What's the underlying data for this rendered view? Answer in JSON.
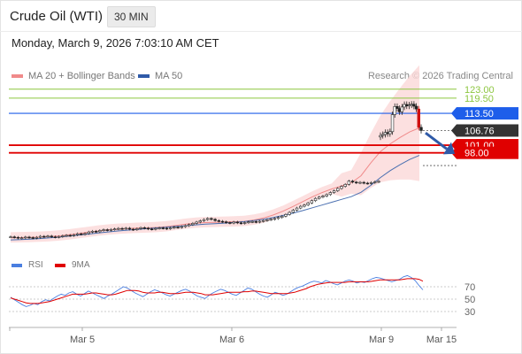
{
  "header": {
    "title": "Crude Oil (WTI)",
    "interval": "30 MIN",
    "datetime": "Monday, March 9, 2026 7:03:10 AM CET"
  },
  "legend": {
    "ma20_label": "MA 20 + Bollinger Bands",
    "ma50_label": "MA 50",
    "credit": "Research © 2026 Trading Central"
  },
  "rsi_legend": {
    "rsi_label": "RSI",
    "ma_label": "9MA"
  },
  "colors": {
    "candle": "#222222",
    "ma20": "#f08a8a",
    "band_fill": "#fbd6d6",
    "ma50": "#4a6fb0",
    "target": "#8cc63f",
    "pivot": "#1e5eea",
    "support": "#e00000",
    "current": "#333333",
    "arrow": "#2f5aa8",
    "rsi": "#4a7ee0",
    "rsi_ma": "#e00000"
  },
  "chart_data": [
    {
      "type": "candlestick",
      "x_tick_labels": [
        "Mar 5",
        "Mar 6",
        "Mar 9",
        "Mar 15"
      ],
      "y_min": 60,
      "y_max": 125,
      "horizontal_levels": [
        {
          "label": "123.00",
          "value": 123.0,
          "role": "resistance-target"
        },
        {
          "label": "119.50",
          "value": 119.5,
          "role": "resistance-target"
        },
        {
          "label": "113.50",
          "value": 113.5,
          "role": "pivot"
        },
        {
          "label": "106.76",
          "value": 106.76,
          "role": "last-price"
        },
        {
          "label": "101.00",
          "value": 101.0,
          "role": "support"
        },
        {
          "label": "98.00",
          "value": 98.0,
          "role": "support"
        }
      ],
      "close_series": [
        65.0,
        64.8,
        64.5,
        64.6,
        64.9,
        64.7,
        64.5,
        64.8,
        65.2,
        65.1,
        65.3,
        65.0,
        64.9,
        65.1,
        65.4,
        65.6,
        65.5,
        65.8,
        66.2,
        66.0,
        66.3,
        66.9,
        67.2,
        67.0,
        67.5,
        67.8,
        67.6,
        67.9,
        68.1,
        68.3,
        68.2,
        68.4,
        68.0,
        67.8,
        68.2,
        68.6,
        68.4,
        68.1,
        68.0,
        68.3,
        68.5,
        68.4,
        68.2,
        68.5,
        68.8,
        68.7,
        69.0,
        69.4,
        69.8,
        70.3,
        70.8,
        71.3,
        71.8,
        72.2,
        71.9,
        71.4,
        71.1,
        70.9,
        70.6,
        70.4,
        70.8,
        70.5,
        70.3,
        70.6,
        70.9,
        71.0,
        70.8,
        71.1,
        71.4,
        71.7,
        71.9,
        72.2,
        72.6,
        73.1,
        73.8,
        74.6,
        75.5,
        76.3,
        77.0,
        77.5,
        78.3,
        79.2,
        80.1,
        80.6,
        81.0,
        81.6,
        82.4,
        83.1,
        84.0,
        84.8,
        85.6,
        86.9,
        86.5,
        86.2,
        86.4,
        86.1,
        86.0,
        86.3,
        86.6,
        86.8
      ],
      "gap_segment_closes": [
        104.8,
        105.2,
        106.0,
        105.5,
        106.3,
        113.0,
        116.2,
        115.4,
        114.1,
        116.0,
        117.0,
        116.4,
        116.8,
        117.1,
        116.3,
        115.2,
        108.0,
        106.76
      ],
      "series": [
        {
          "name": "MA 20",
          "values": [
            64.6,
            64.7,
            64.8,
            64.9,
            65.1,
            65.4,
            65.8,
            66.3,
            66.8,
            67.3,
            67.7,
            68.0,
            68.2,
            68.4,
            68.5,
            68.7,
            69.0,
            69.5,
            70.0,
            70.4,
            70.6,
            70.7,
            70.8,
            70.9,
            71.1,
            71.6,
            72.4,
            73.6,
            75.1,
            76.9,
            78.8,
            80.7,
            82.4,
            83.8,
            85.0,
            86.2,
            89.0,
            94.0,
            98.5,
            101.5,
            104.0,
            106.2,
            107.8
          ]
        },
        {
          "name": "MA 50",
          "values": [
            63.8,
            63.9,
            64.1,
            64.3,
            64.6,
            64.9,
            65.3,
            65.7,
            66.1,
            66.5,
            66.9,
            67.3,
            67.6,
            67.9,
            68.2,
            68.5,
            68.8,
            69.1,
            69.4,
            69.7,
            70.0,
            70.2,
            70.4,
            70.7,
            71.0,
            71.4,
            71.9,
            72.6,
            73.4,
            74.3,
            75.3,
            76.4,
            77.5,
            78.6,
            79.7,
            80.8,
            82.5,
            85.2,
            88.3,
            91.0,
            93.3,
            95.4,
            97.0
          ]
        }
      ]
    },
    {
      "type": "line",
      "name": "RSI panel",
      "y_min": 10,
      "y_max": 90,
      "y_tick_labels": [
        "70",
        "50",
        "30"
      ],
      "series": [
        {
          "name": "RSI",
          "values": [
            53,
            49,
            45,
            41,
            38,
            40,
            43,
            41,
            46,
            49,
            47,
            51,
            55,
            58,
            56,
            60,
            62,
            58,
            55,
            59,
            63,
            60,
            57,
            54,
            51,
            55,
            58,
            62,
            66,
            70,
            68,
            64,
            60,
            57,
            54,
            58,
            62,
            65,
            63,
            60,
            57,
            55,
            58,
            61,
            64,
            66,
            63,
            59,
            55,
            53,
            51,
            56,
            60,
            63,
            66,
            64,
            61,
            58,
            56,
            60,
            64,
            68,
            66,
            62,
            58,
            55,
            53,
            57,
            61,
            59,
            56,
            58,
            62,
            66,
            69,
            71,
            74,
            77,
            79,
            78,
            76,
            80,
            78,
            75,
            73,
            76,
            79,
            81,
            79,
            76,
            78,
            77,
            80,
            83,
            85,
            84,
            82,
            80,
            78,
            80,
            82,
            86,
            88,
            85,
            80,
            72,
            65
          ]
        },
        {
          "name": "9MA",
          "values": [
            52,
            50,
            48,
            46,
            44,
            43,
            43,
            43,
            44,
            45,
            46,
            48,
            50,
            52,
            54,
            56,
            58,
            58,
            58,
            58,
            59,
            60,
            60,
            59,
            58,
            57,
            57,
            58,
            60,
            62,
            64,
            64,
            64,
            63,
            61,
            60,
            60,
            60,
            61,
            61,
            60,
            59,
            59,
            59,
            60,
            61,
            61,
            61,
            60,
            59,
            57,
            57,
            57,
            58,
            59,
            60,
            61,
            61,
            61,
            61,
            62,
            62,
            63,
            63,
            62,
            61,
            60,
            59,
            59,
            59,
            59,
            59,
            60,
            61,
            63,
            65,
            67,
            70,
            72,
            74,
            75,
            76,
            77,
            77,
            77,
            77,
            77,
            78,
            78,
            78,
            78,
            78,
            78,
            79,
            80,
            81,
            81,
            81,
            81,
            81,
            81,
            82,
            83,
            83,
            83,
            82,
            79
          ]
        }
      ]
    }
  ]
}
